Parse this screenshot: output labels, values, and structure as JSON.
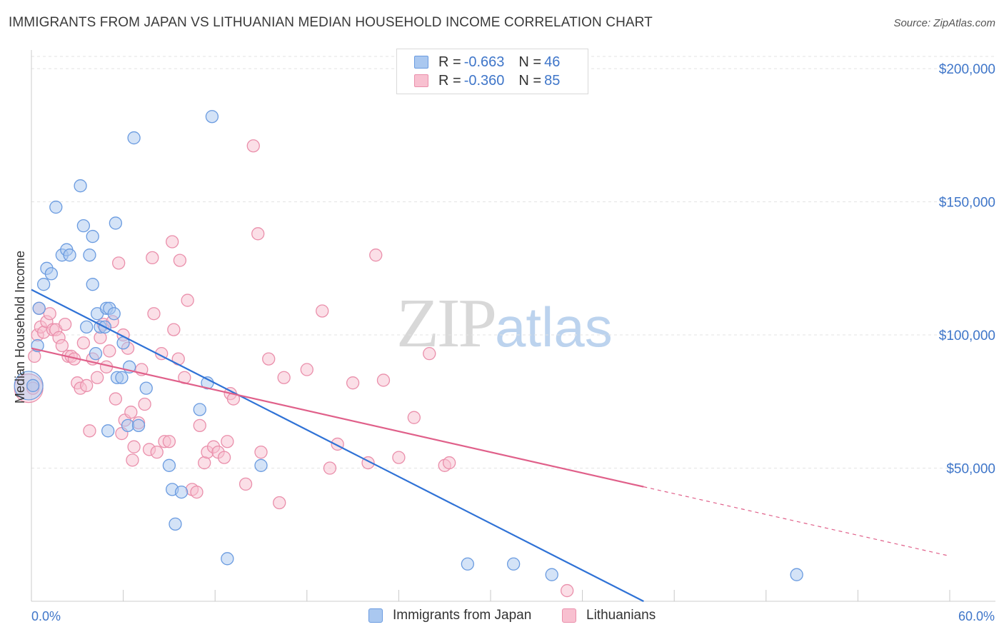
{
  "header": {
    "title": "IMMIGRANTS FROM JAPAN VS LITHUANIAN MEDIAN HOUSEHOLD INCOME CORRELATION CHART",
    "source": "Source: ZipAtlas.com"
  },
  "watermark": {
    "zip": "ZIP",
    "atlas": "atlas"
  },
  "legend_top": {
    "rows": [
      {
        "r_label": "R =",
        "r_value": "-0.663",
        "n_label": "N =",
        "n_value": "46"
      },
      {
        "r_label": "R =",
        "r_value": "-0.360",
        "n_label": "N =",
        "n_value": "85"
      }
    ]
  },
  "legend_bottom": {
    "items": [
      {
        "label": "Immigrants from Japan"
      },
      {
        "label": "Lithuanians"
      }
    ]
  },
  "colors": {
    "japan_fill": "#aac8f0",
    "japan_stroke": "#6a9be0",
    "japan_line": "#2f72d6",
    "lith_fill": "#f8c0d0",
    "lith_stroke": "#ea8fab",
    "lith_line": "#e0608a",
    "tick_text": "#3f76c9",
    "grid": "#e3e3e3"
  },
  "chart_data": {
    "type": "scatter",
    "title": "IMMIGRANTS FROM JAPAN VS LITHUANIAN MEDIAN HOUSEHOLD INCOME CORRELATION CHART",
    "xlabel": "",
    "ylabel": "Median Household Income",
    "xlim": [
      0,
      60
    ],
    "ylim": [
      0,
      207000
    ],
    "x_tick_labels": [
      "0.0%",
      "60.0%"
    ],
    "y_ticks": [
      50000,
      100000,
      150000,
      200000
    ],
    "y_tick_labels": [
      "$50,000",
      "$100,000",
      "$150,000",
      "$200,000"
    ],
    "grid": true,
    "legend_position": "top-center",
    "series": [
      {
        "name": "Immigrants from Japan",
        "color": "#6a9be0",
        "points": [
          [
            0.1,
            81000
          ],
          [
            0.4,
            96000
          ],
          [
            0.5,
            110000
          ],
          [
            0.8,
            119000
          ],
          [
            1.0,
            125000
          ],
          [
            1.3,
            123000
          ],
          [
            1.6,
            148000
          ],
          [
            2.0,
            130000
          ],
          [
            2.3,
            132000
          ],
          [
            2.5,
            130000
          ],
          [
            3.2,
            156000
          ],
          [
            3.4,
            141000
          ],
          [
            3.6,
            103000
          ],
          [
            3.8,
            130000
          ],
          [
            4.0,
            137000
          ],
          [
            4.0,
            119000
          ],
          [
            4.2,
            93000
          ],
          [
            4.3,
            108000
          ],
          [
            4.5,
            103000
          ],
          [
            4.8,
            103000
          ],
          [
            4.9,
            110000
          ],
          [
            5.0,
            64000
          ],
          [
            5.1,
            110000
          ],
          [
            5.4,
            108000
          ],
          [
            5.5,
            142000
          ],
          [
            5.6,
            84000
          ],
          [
            5.9,
            84000
          ],
          [
            6.0,
            97000
          ],
          [
            6.3,
            66000
          ],
          [
            6.4,
            88000
          ],
          [
            6.7,
            174000
          ],
          [
            7.0,
            66000
          ],
          [
            7.5,
            80000
          ],
          [
            9.0,
            51000
          ],
          [
            9.2,
            42000
          ],
          [
            9.4,
            29000
          ],
          [
            9.8,
            41000
          ],
          [
            11.0,
            72000
          ],
          [
            11.5,
            82000
          ],
          [
            11.8,
            182000
          ],
          [
            12.8,
            16000
          ],
          [
            15.0,
            51000
          ],
          [
            28.5,
            14000
          ],
          [
            31.5,
            14000
          ],
          [
            34.0,
            10000
          ],
          [
            50.0,
            10000
          ]
        ],
        "big_point": [
          0.1,
          81000
        ]
      },
      {
        "name": "Lithuanians",
        "color": "#ea8fab",
        "points": [
          [
            0.1,
            80000
          ],
          [
            0.2,
            92000
          ],
          [
            0.4,
            100000
          ],
          [
            0.6,
            103000
          ],
          [
            0.8,
            101000
          ],
          [
            1.0,
            105000
          ],
          [
            1.2,
            108000
          ],
          [
            1.4,
            102000
          ],
          [
            1.6,
            102000
          ],
          [
            1.8,
            99000
          ],
          [
            2.0,
            96000
          ],
          [
            2.2,
            104000
          ],
          [
            2.4,
            92000
          ],
          [
            2.6,
            92000
          ],
          [
            2.8,
            91000
          ],
          [
            3.0,
            82000
          ],
          [
            3.2,
            80000
          ],
          [
            3.4,
            97000
          ],
          [
            3.6,
            81000
          ],
          [
            3.8,
            64000
          ],
          [
            4.0,
            91000
          ],
          [
            4.3,
            84000
          ],
          [
            4.5,
            99000
          ],
          [
            4.7,
            104000
          ],
          [
            4.9,
            88000
          ],
          [
            5.1,
            94000
          ],
          [
            5.3,
            105000
          ],
          [
            5.5,
            76000
          ],
          [
            5.7,
            127000
          ],
          [
            5.9,
            63000
          ],
          [
            6.0,
            100000
          ],
          [
            6.1,
            68000
          ],
          [
            6.3,
            95000
          ],
          [
            6.5,
            71000
          ],
          [
            6.6,
            53000
          ],
          [
            6.7,
            58000
          ],
          [
            7.0,
            67000
          ],
          [
            7.2,
            87000
          ],
          [
            7.4,
            74000
          ],
          [
            7.7,
            57000
          ],
          [
            7.9,
            129000
          ],
          [
            8.0,
            108000
          ],
          [
            8.2,
            56000
          ],
          [
            8.5,
            93000
          ],
          [
            8.7,
            60000
          ],
          [
            9.0,
            60000
          ],
          [
            9.2,
            135000
          ],
          [
            9.3,
            102000
          ],
          [
            9.6,
            91000
          ],
          [
            9.7,
            128000
          ],
          [
            10.0,
            84000
          ],
          [
            10.2,
            113000
          ],
          [
            10.5,
            42000
          ],
          [
            10.8,
            41000
          ],
          [
            11.0,
            66000
          ],
          [
            11.3,
            52000
          ],
          [
            11.5,
            56000
          ],
          [
            11.9,
            58000
          ],
          [
            12.2,
            56000
          ],
          [
            12.6,
            54000
          ],
          [
            12.8,
            60000
          ],
          [
            13.0,
            78000
          ],
          [
            13.2,
            76000
          ],
          [
            14.0,
            44000
          ],
          [
            14.5,
            171000
          ],
          [
            14.8,
            138000
          ],
          [
            15.0,
            56000
          ],
          [
            15.5,
            91000
          ],
          [
            16.2,
            37000
          ],
          [
            16.5,
            84000
          ],
          [
            18.0,
            87000
          ],
          [
            19.0,
            109000
          ],
          [
            19.5,
            50000
          ],
          [
            20.0,
            59000
          ],
          [
            21.0,
            82000
          ],
          [
            22.0,
            52000
          ],
          [
            22.5,
            130000
          ],
          [
            23.0,
            83000
          ],
          [
            24.0,
            54000
          ],
          [
            25.0,
            69000
          ],
          [
            26.0,
            93000
          ],
          [
            27.0,
            51000
          ],
          [
            27.3,
            52000
          ],
          [
            35.0,
            4000
          ],
          [
            0.5,
            110000
          ]
        ],
        "big_point": [
          0.1,
          80000
        ]
      }
    ],
    "trend_lines": [
      {
        "series": "Immigrants from Japan",
        "x_start": 0,
        "y_start": 117000,
        "x_end": 40,
        "y_end": 0,
        "dashed_from": null
      },
      {
        "series": "Lithuanians",
        "x_start": 0,
        "y_start": 95000,
        "x_end": 60,
        "y_end": 17000,
        "dashed_from": 40
      }
    ]
  }
}
